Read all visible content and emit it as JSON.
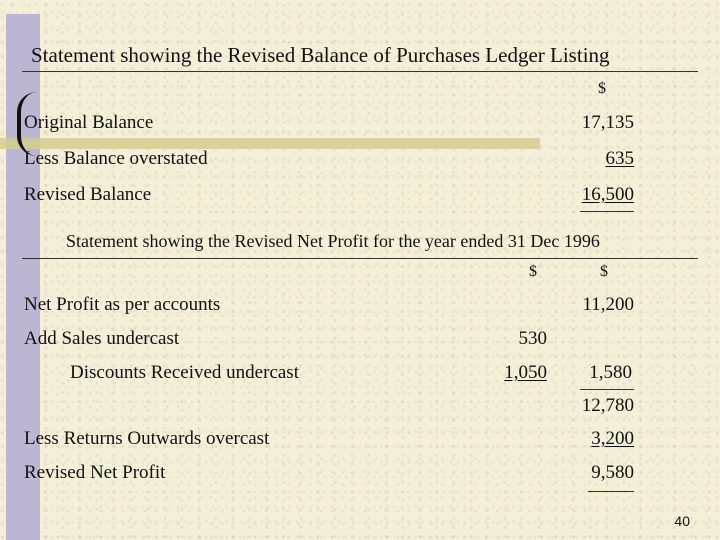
{
  "ledger": {
    "title": "Statement showing the Revised Balance of Purchases Ledger Listing",
    "currency": "$",
    "rows": [
      {
        "label": "Original Balance",
        "amount": "17,135"
      },
      {
        "label": "Less Balance overstated",
        "amount": "635"
      },
      {
        "label": "Revised Balance",
        "amount": "16,500"
      }
    ]
  },
  "profit": {
    "title": "Statement showing the Revised Net Profit for the year ended 31 Dec 1996",
    "currency_col1": "$",
    "currency_col2": "$",
    "net_profit_label": "Net Profit as per accounts",
    "net_profit_amount": "11,200",
    "add_label": "Add  Sales undercast",
    "add_amount": "530",
    "discounts_label": "Discounts Received undercast",
    "discounts_amount": "1,050",
    "add_total": "1,580",
    "subtotal": "12,780",
    "less_label": "Less  Returns Outwards overcast",
    "less_amount": "3,200",
    "revised_label": "Revised Net Profit",
    "revised_amount": "9,580"
  },
  "page_number": "40"
}
